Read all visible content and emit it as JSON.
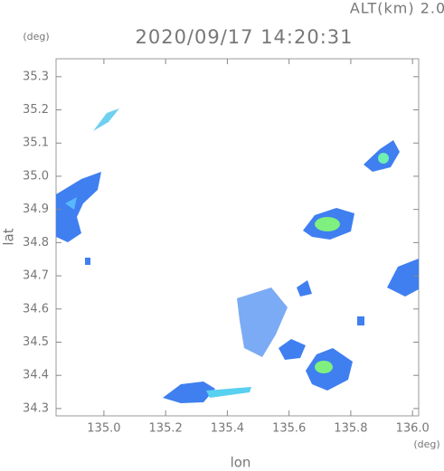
{
  "chart_data": {
    "type": "map",
    "title": "2020/09/17 14:20:31",
    "subtitle": "ALT(km) 2.0",
    "y_unit": "(deg)",
    "x_unit": "(deg)",
    "x_label": "lon",
    "y_label": "lat",
    "xlim": [
      134.845,
      136.02
    ],
    "ylim": [
      34.278,
      35.354
    ],
    "xticks": [
      {
        "value": 135,
        "label": "135.0"
      },
      135.2,
      135.4,
      135.6,
      135.8,
      {
        "value": 136,
        "label": "136.0"
      }
    ],
    "yticks": [
      34.3,
      34.4,
      34.5,
      34.6,
      34.7,
      34.8,
      34.9,
      {
        "value": 35,
        "label": "35.0"
      },
      35.1,
      35.2,
      35.3
    ]
  }
}
